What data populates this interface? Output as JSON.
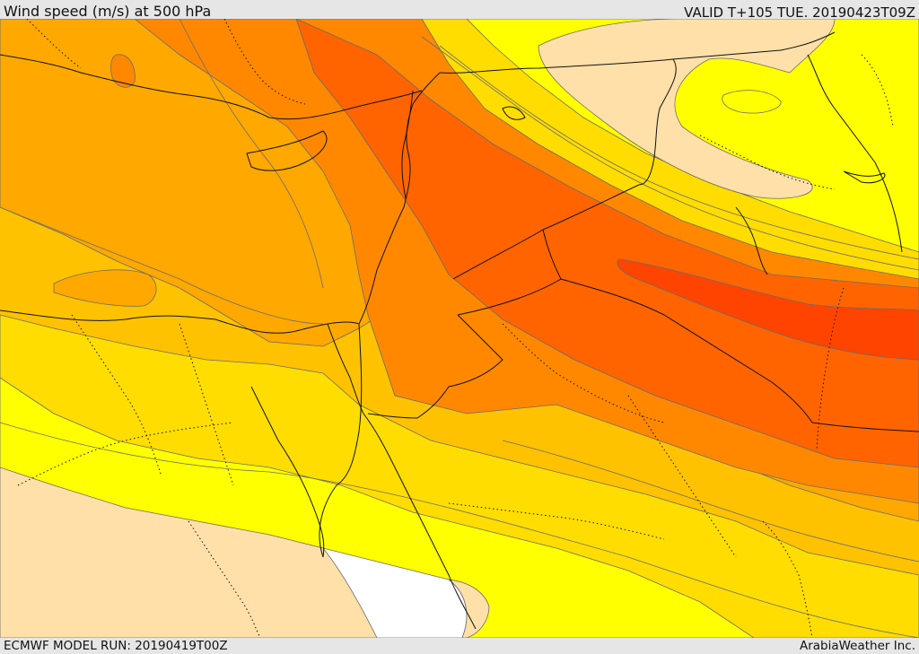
{
  "header": {
    "title": "Wind speed (m/s) at 500 hPa",
    "valid": "VALID T+105 TUE. 20190423T09Z"
  },
  "footer": {
    "model_run": "ECMWF MODEL RUN: 20190419T00Z",
    "credit": "ArabiaWeather Inc."
  },
  "map": {
    "variable": "wind speed",
    "level_hpa": 500,
    "units": "m/s",
    "colors": {
      "band_0": "#ffffff",
      "band_1": "#fee0a8",
      "band_2": "#ffff00",
      "band_3": "#ffdd00",
      "band_4": "#ffc200",
      "band_5": "#ffa800",
      "band_6": "#ff8800",
      "band_7": "#ff6400",
      "band_8": "#ff4400",
      "contour": "#6b6b6b",
      "border": "#111111"
    }
  }
}
